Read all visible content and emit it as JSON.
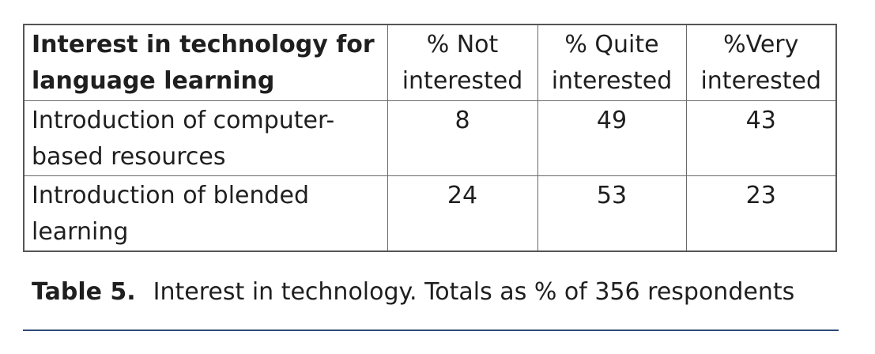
{
  "table": {
    "headers": [
      "Interest in technology for language learning",
      "% Not interested",
      "% Quite interested",
      "%Very interested"
    ],
    "rows": [
      {
        "label": "Introduction of computer-based resources",
        "values": [
          "8",
          "49",
          "43"
        ]
      },
      {
        "label": "Introduction of blended learning",
        "values": [
          "24",
          "53",
          "23"
        ]
      }
    ]
  },
  "caption": {
    "label": "Table 5.",
    "text": "Interest in technology. Totals as % of 356 respondents"
  },
  "colors": {
    "rule": "#2b4a7a",
    "text": "#1f1f1f",
    "border": "#6a6a6a"
  }
}
